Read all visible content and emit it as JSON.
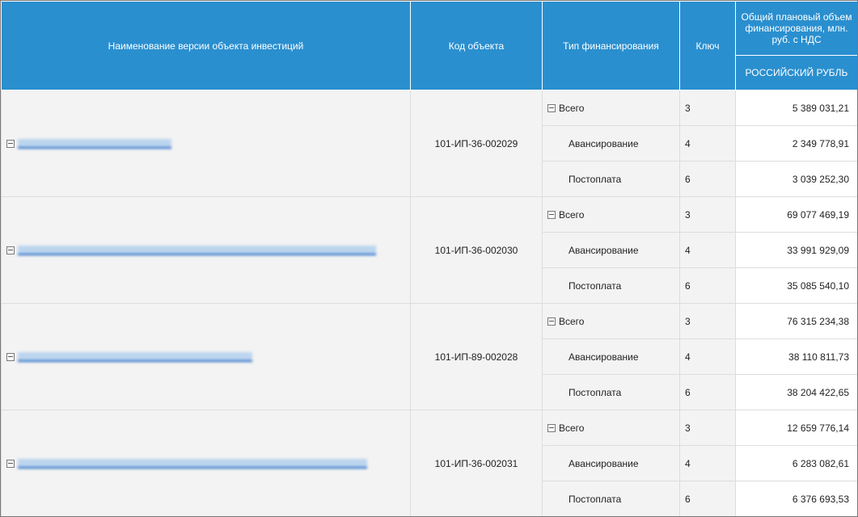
{
  "header": {
    "name": "Наименование версии объекта инвестиций",
    "code": "Код объекта",
    "type": "Тип финансирования",
    "key": "Ключ",
    "total": "Общий плановый объем финансирования, млн. руб. с НДС",
    "currency": "РОССИЙСКИЙ РУБЛЬ"
  },
  "groups": [
    {
      "code": "101-ИП-36-002029",
      "rows": [
        {
          "type": "Всего",
          "key": "3",
          "value": "5 389 031,21"
        },
        {
          "type": "Авансирование",
          "key": "4",
          "value": "2 349 778,91"
        },
        {
          "type": "Постоплата",
          "key": "6",
          "value": "3 039 252,30"
        }
      ]
    },
    {
      "code": "101-ИП-36-002030",
      "rows": [
        {
          "type": "Всего",
          "key": "3",
          "value": "69 077 469,19"
        },
        {
          "type": "Авансирование",
          "key": "4",
          "value": "33 991 929,09"
        },
        {
          "type": "Постоплата",
          "key": "6",
          "value": "35 085 540,10"
        }
      ]
    },
    {
      "code": "101-ИП-89-002028",
      "rows": [
        {
          "type": "Всего",
          "key": "3",
          "value": "76 315 234,38"
        },
        {
          "type": "Авансирование",
          "key": "4",
          "value": "38 110 811,73"
        },
        {
          "type": "Постоплата",
          "key": "6",
          "value": "38 204 422,65"
        }
      ]
    },
    {
      "code": "101-ИП-36-002031",
      "rows": [
        {
          "type": "Всего",
          "key": "3",
          "value": "12 659 776,14"
        },
        {
          "type": "Авансирование",
          "key": "4",
          "value": "6 283 082,61"
        },
        {
          "type": "Постоплата",
          "key": "6",
          "value": "6 376 693,53"
        }
      ]
    }
  ],
  "colors": {
    "header": "#2a8fcf",
    "link": "#1a62c0"
  }
}
